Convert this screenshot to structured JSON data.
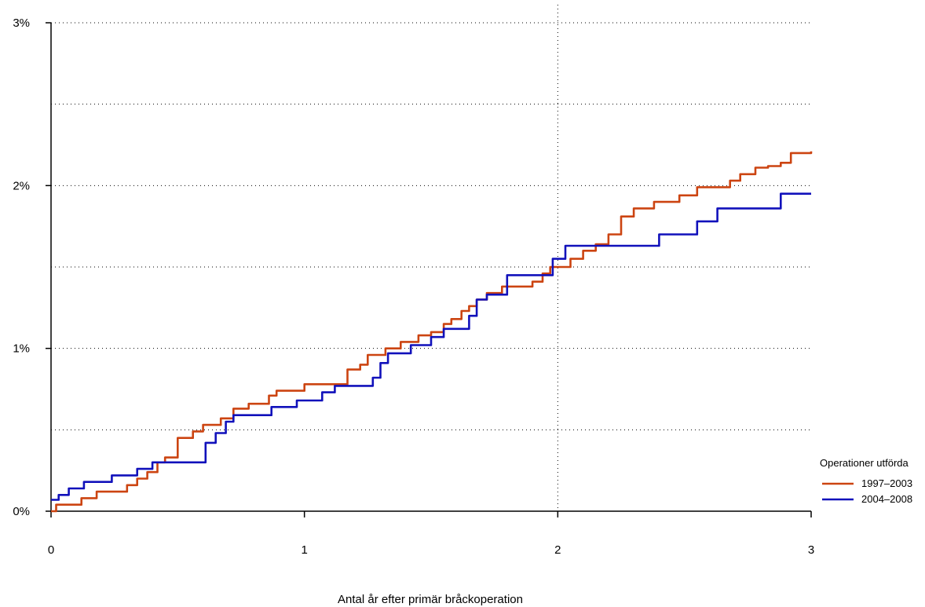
{
  "chart_data": {
    "type": "line",
    "title": "",
    "xlabel": "Antal år efter primär bråckoperation",
    "ylabel": "",
    "xlim": [
      0,
      3
    ],
    "ylim": [
      0,
      3
    ],
    "x_ticks": [
      "0",
      "1",
      "2",
      "3"
    ],
    "y_ticks": [
      "0%",
      "1%",
      "2%",
      "3%"
    ],
    "grid": "dotted",
    "legend": {
      "title": "Operationer utförda",
      "placement": "bottom-right"
    },
    "series": [
      {
        "name": "1997–2003",
        "color": "#cc4411",
        "x": [
          0,
          0.02,
          0.12,
          0.18,
          0.3,
          0.34,
          0.38,
          0.42,
          0.45,
          0.5,
          0.56,
          0.6,
          0.67,
          0.72,
          0.78,
          0.86,
          0.89,
          1.0,
          1.04,
          1.17,
          1.22,
          1.25,
          1.32,
          1.38,
          1.45,
          1.5,
          1.55,
          1.58,
          1.62,
          1.65,
          1.68,
          1.72,
          1.78,
          1.85,
          1.9,
          1.94,
          1.97,
          2.0,
          2.05,
          2.1,
          2.15,
          2.2,
          2.25,
          2.3,
          2.38,
          2.48,
          2.55,
          2.62,
          2.68,
          2.72,
          2.78,
          2.83,
          2.88,
          2.92,
          3.0
        ],
        "y": [
          0,
          0.04,
          0.08,
          0.12,
          0.16,
          0.2,
          0.24,
          0.3,
          0.33,
          0.45,
          0.49,
          0.53,
          0.57,
          0.63,
          0.66,
          0.71,
          0.74,
          0.78,
          0.78,
          0.87,
          0.9,
          0.96,
          1.0,
          1.04,
          1.08,
          1.1,
          1.15,
          1.18,
          1.23,
          1.26,
          1.3,
          1.34,
          1.38,
          1.38,
          1.41,
          1.46,
          1.5,
          1.5,
          1.55,
          1.6,
          1.64,
          1.7,
          1.81,
          1.86,
          1.9,
          1.94,
          1.99,
          1.99,
          2.03,
          2.07,
          2.11,
          2.12,
          2.14,
          2.2,
          2.21
        ]
      },
      {
        "name": "2004–2008",
        "color": "#1111bb",
        "x": [
          0,
          0.03,
          0.07,
          0.13,
          0.24,
          0.34,
          0.4,
          0.58,
          0.61,
          0.65,
          0.69,
          0.72,
          0.87,
          0.97,
          1.07,
          1.12,
          1.27,
          1.3,
          1.33,
          1.35,
          1.42,
          1.5,
          1.55,
          1.65,
          1.68,
          1.72,
          1.8,
          1.98,
          2.03,
          2.4,
          2.55,
          2.63,
          2.88,
          3.0
        ],
        "y": [
          0.07,
          0.1,
          0.14,
          0.18,
          0.22,
          0.26,
          0.3,
          0.3,
          0.42,
          0.48,
          0.55,
          0.59,
          0.64,
          0.68,
          0.73,
          0.77,
          0.82,
          0.91,
          0.97,
          0.97,
          1.02,
          1.07,
          1.12,
          1.2,
          1.3,
          1.33,
          1.45,
          1.55,
          1.63,
          1.7,
          1.78,
          1.86,
          1.95,
          1.95
        ]
      }
    ]
  }
}
